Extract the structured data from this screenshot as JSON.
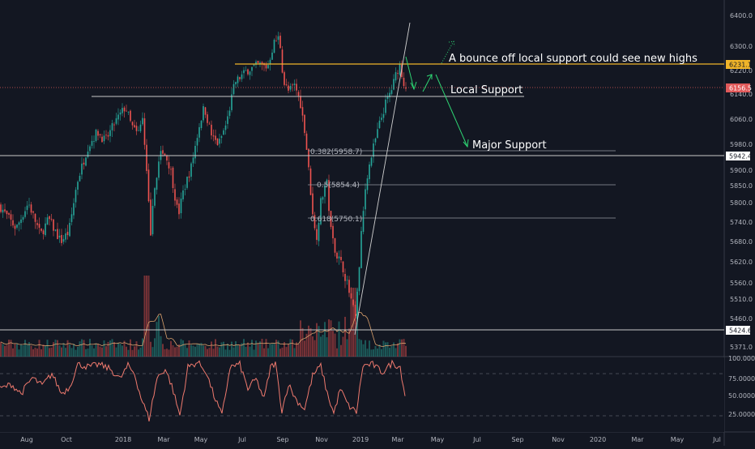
{
  "chart_data": {
    "type": "candlestick",
    "price_axis": {
      "ticks": [
        "6400.0",
        "6300.0",
        "6220.0",
        "6140.0",
        "6060.0",
        "5980.0",
        "5900.0",
        "5850.0",
        "5800.0",
        "5740.0",
        "5680.0",
        "5620.0",
        "5560.0",
        "5510.0",
        "5460.0",
        "5371.0"
      ],
      "range": [
        5371,
        6400
      ]
    },
    "time_axis": {
      "ticks": [
        "Aug",
        "Oct",
        "2018",
        "Mar",
        "May",
        "Jul",
        "Sep",
        "Nov",
        "2019",
        "Mar",
        "May",
        "Jul",
        "Sep",
        "Nov",
        "2020",
        "Mar",
        "May",
        "Jul"
      ]
    },
    "price_tags": {
      "resistance": "6231.1",
      "current": "6156.5",
      "major_support": "5942.4",
      "lower": "5424.6"
    },
    "fib_labels": [
      "0.382(5958.7)",
      "0.5(5854.4)",
      "0.618(5750.1)"
    ],
    "annotations": {
      "new_highs": "A bounce off local support could see new highs",
      "local_support": "Local Support",
      "major_support": "Major Support"
    },
    "oscillator": {
      "ticks": [
        "100.0000",
        "75.0000",
        "50.0000",
        "25.0000"
      ],
      "range": [
        0,
        100
      ]
    },
    "price_keypoints": [
      [
        0,
        5790
      ],
      [
        8,
        5760
      ],
      [
        20,
        5720
      ],
      [
        35,
        5800
      ],
      [
        50,
        5700
      ],
      [
        60,
        5750
      ],
      [
        75,
        5680
      ],
      [
        85,
        5710
      ],
      [
        95,
        5860
      ],
      [
        108,
        5970
      ],
      [
        120,
        6020
      ],
      [
        130,
        5990
      ],
      [
        142,
        6050
      ],
      [
        155,
        6100
      ],
      [
        162,
        6040
      ],
      [
        170,
        6010
      ],
      [
        176,
        6060
      ],
      [
        182,
        5850
      ],
      [
        186,
        5710
      ],
      [
        192,
        5870
      ],
      [
        200,
        5970
      ],
      [
        210,
        5910
      ],
      [
        220,
        5760
      ],
      [
        226,
        5830
      ],
      [
        236,
        5910
      ],
      [
        246,
        6040
      ],
      [
        252,
        6100
      ],
      [
        262,
        6000
      ],
      [
        270,
        5980
      ],
      [
        280,
        6050
      ],
      [
        290,
        6180
      ],
      [
        305,
        6220
      ],
      [
        320,
        6240
      ],
      [
        330,
        6230
      ],
      [
        338,
        6310
      ],
      [
        345,
        6330
      ],
      [
        350,
        6180
      ],
      [
        356,
        6150
      ],
      [
        364,
        6170
      ],
      [
        372,
        6100
      ],
      [
        378,
        5980
      ],
      [
        384,
        5820
      ],
      [
        390,
        5680
      ],
      [
        396,
        5800
      ],
      [
        403,
        5870
      ],
      [
        409,
        5700
      ],
      [
        416,
        5640
      ],
      [
        424,
        5600
      ],
      [
        432,
        5520
      ],
      [
        439,
        5450
      ],
      [
        446,
        5700
      ],
      [
        452,
        5870
      ],
      [
        460,
        5960
      ],
      [
        468,
        6040
      ],
      [
        476,
        6110
      ],
      [
        484,
        6160
      ],
      [
        490,
        6220
      ],
      [
        494,
        6240
      ],
      [
        498,
        6180
      ],
      [
        502,
        6160
      ]
    ],
    "oscillator_keypoints": [
      [
        0,
        55
      ],
      [
        14,
        62
      ],
      [
        26,
        48
      ],
      [
        40,
        72
      ],
      [
        52,
        60
      ],
      [
        64,
        78
      ],
      [
        76,
        48
      ],
      [
        86,
        58
      ],
      [
        96,
        92
      ],
      [
        110,
        88
      ],
      [
        122,
        92
      ],
      [
        136,
        85
      ],
      [
        148,
        70
      ],
      [
        158,
        90
      ],
      [
        166,
        78
      ],
      [
        174,
        42
      ],
      [
        184,
        10
      ],
      [
        194,
        72
      ],
      [
        204,
        85
      ],
      [
        212,
        60
      ],
      [
        222,
        15
      ],
      [
        232,
        88
      ],
      [
        244,
        95
      ],
      [
        254,
        82
      ],
      [
        264,
        45
      ],
      [
        274,
        15
      ],
      [
        284,
        88
      ],
      [
        296,
        92
      ],
      [
        306,
        55
      ],
      [
        316,
        70
      ],
      [
        326,
        40
      ],
      [
        334,
        88
      ],
      [
        340,
        94
      ],
      [
        348,
        22
      ],
      [
        356,
        62
      ],
      [
        366,
        38
      ],
      [
        376,
        25
      ],
      [
        386,
        75
      ],
      [
        396,
        90
      ],
      [
        404,
        48
      ],
      [
        412,
        18
      ],
      [
        420,
        55
      ],
      [
        430,
        30
      ],
      [
        440,
        20
      ],
      [
        448,
        90
      ],
      [
        460,
        92
      ],
      [
        472,
        80
      ],
      [
        484,
        94
      ],
      [
        494,
        88
      ],
      [
        500,
        45
      ]
    ]
  }
}
